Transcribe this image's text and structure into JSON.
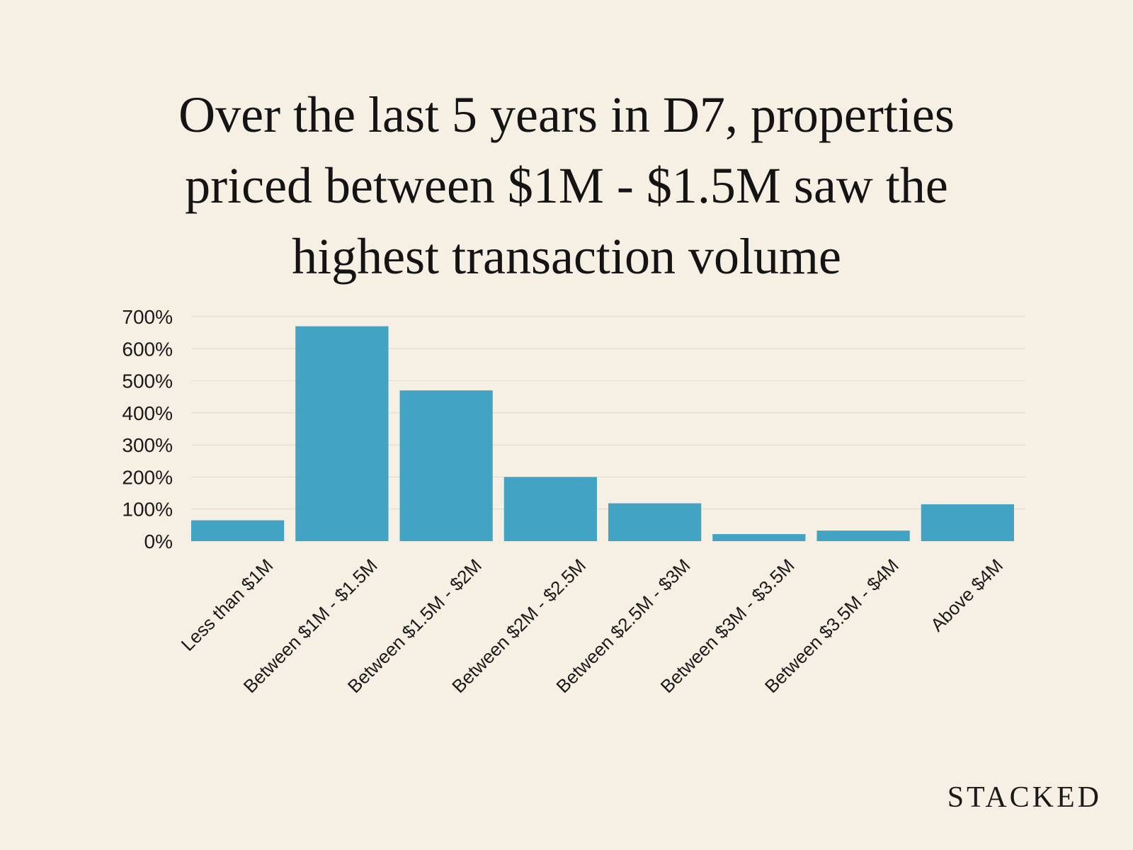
{
  "title_lines": [
    "Over the last 5 years in D7, properties",
    "priced between $1M - $1.5M saw the",
    "highest transaction volume"
  ],
  "brand": "STACKED",
  "colors": {
    "background": "#f6f0e4",
    "bar": "#42a3c3",
    "grid": "#e0dacd",
    "text": "#1a1a1a"
  },
  "chart_data": {
    "type": "bar",
    "title": "Over the last 5 years in D7, properties priced between $1M - $1.5M saw the highest transaction volume",
    "categories": [
      "Less than $1M",
      "Between $1M - $1.5M",
      "Between $1.5M - $2M",
      "Between $2M - $2.5M",
      "Between $2.5M - $3M",
      "Between $3M - $3.5M",
      "Between $3.5M - $4M",
      "Above $4M"
    ],
    "values": [
      65,
      670,
      470,
      200,
      118,
      22,
      33,
      115
    ],
    "ylim": [
      0,
      700
    ],
    "yticks": [
      0,
      100,
      200,
      300,
      400,
      500,
      600,
      700
    ],
    "ytick_suffix": "%",
    "xlabel": "",
    "ylabel": "",
    "grid": true,
    "legend": "none"
  }
}
